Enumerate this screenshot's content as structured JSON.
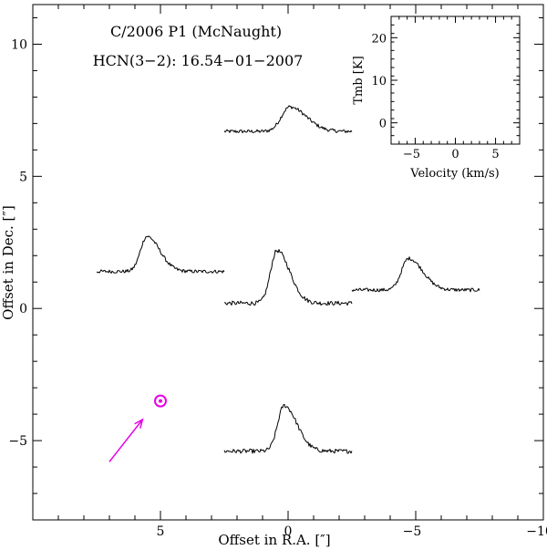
{
  "chart_data": {
    "type": "line",
    "title": "C/2006 P1 (McNaught)",
    "subtitle": "HCN(3−2): 16.54−01−2007",
    "xlabel": "Offset in R.A. [″]",
    "ylabel": "Offset in Dec. [″]",
    "xlim": [
      10,
      -10
    ],
    "ylim": [
      -8,
      11.5
    ],
    "xticks": [
      5,
      0,
      -5,
      -10
    ],
    "xtick_labels": [
      "5",
      "0",
      "−5",
      "−10"
    ],
    "yticks": [
      -5,
      0,
      5,
      10
    ],
    "ytick_labels": [
      "−5",
      "0",
      "5",
      "10"
    ],
    "spectra_velocity_range": [
      -8,
      8
    ],
    "spectra": [
      {
        "name": "spectrum-north",
        "ra": 0,
        "dec": 6.7,
        "peak_temp": 7,
        "noise": 0.5,
        "width": 1.3,
        "center": 0.2
      },
      {
        "name": "spectrum-east",
        "ra": 5,
        "dec": 1.4,
        "peak_temp": 10,
        "noise": 0.5,
        "width": 1.0,
        "center": -1.7
      },
      {
        "name": "spectrum-center",
        "ra": 0,
        "dec": 0.2,
        "peak_temp": 15,
        "noise": 0.6,
        "width": 1.0,
        "center": -1.4
      },
      {
        "name": "spectrum-west",
        "ra": -5,
        "dec": 0.7,
        "peak_temp": 9,
        "noise": 0.5,
        "width": 1.1,
        "center": -0.9
      },
      {
        "name": "spectrum-south",
        "ra": 0,
        "dec": -5.4,
        "peak_temp": 13,
        "noise": 0.6,
        "width": 1.0,
        "center": -0.5
      }
    ],
    "sun_marker": {
      "ra": 5,
      "dec": -3.5,
      "color": "#e800e8"
    },
    "sun_arrow": {
      "from": [
        7,
        -5.8
      ],
      "to": [
        5.7,
        -4.2
      ],
      "color": "#e800e8"
    },
    "inset": {
      "xlabel": "Velocity (km/s)",
      "ylabel": "Tmb [K]",
      "xlim": [
        -8,
        8
      ],
      "ylim": [
        -5,
        25
      ],
      "xticks": [
        -5,
        0,
        5
      ],
      "xtick_labels": [
        "−5",
        "0",
        "5"
      ],
      "yticks": [
        0,
        10,
        20
      ],
      "ytick_labels": [
        "0",
        "10",
        "20"
      ]
    }
  }
}
